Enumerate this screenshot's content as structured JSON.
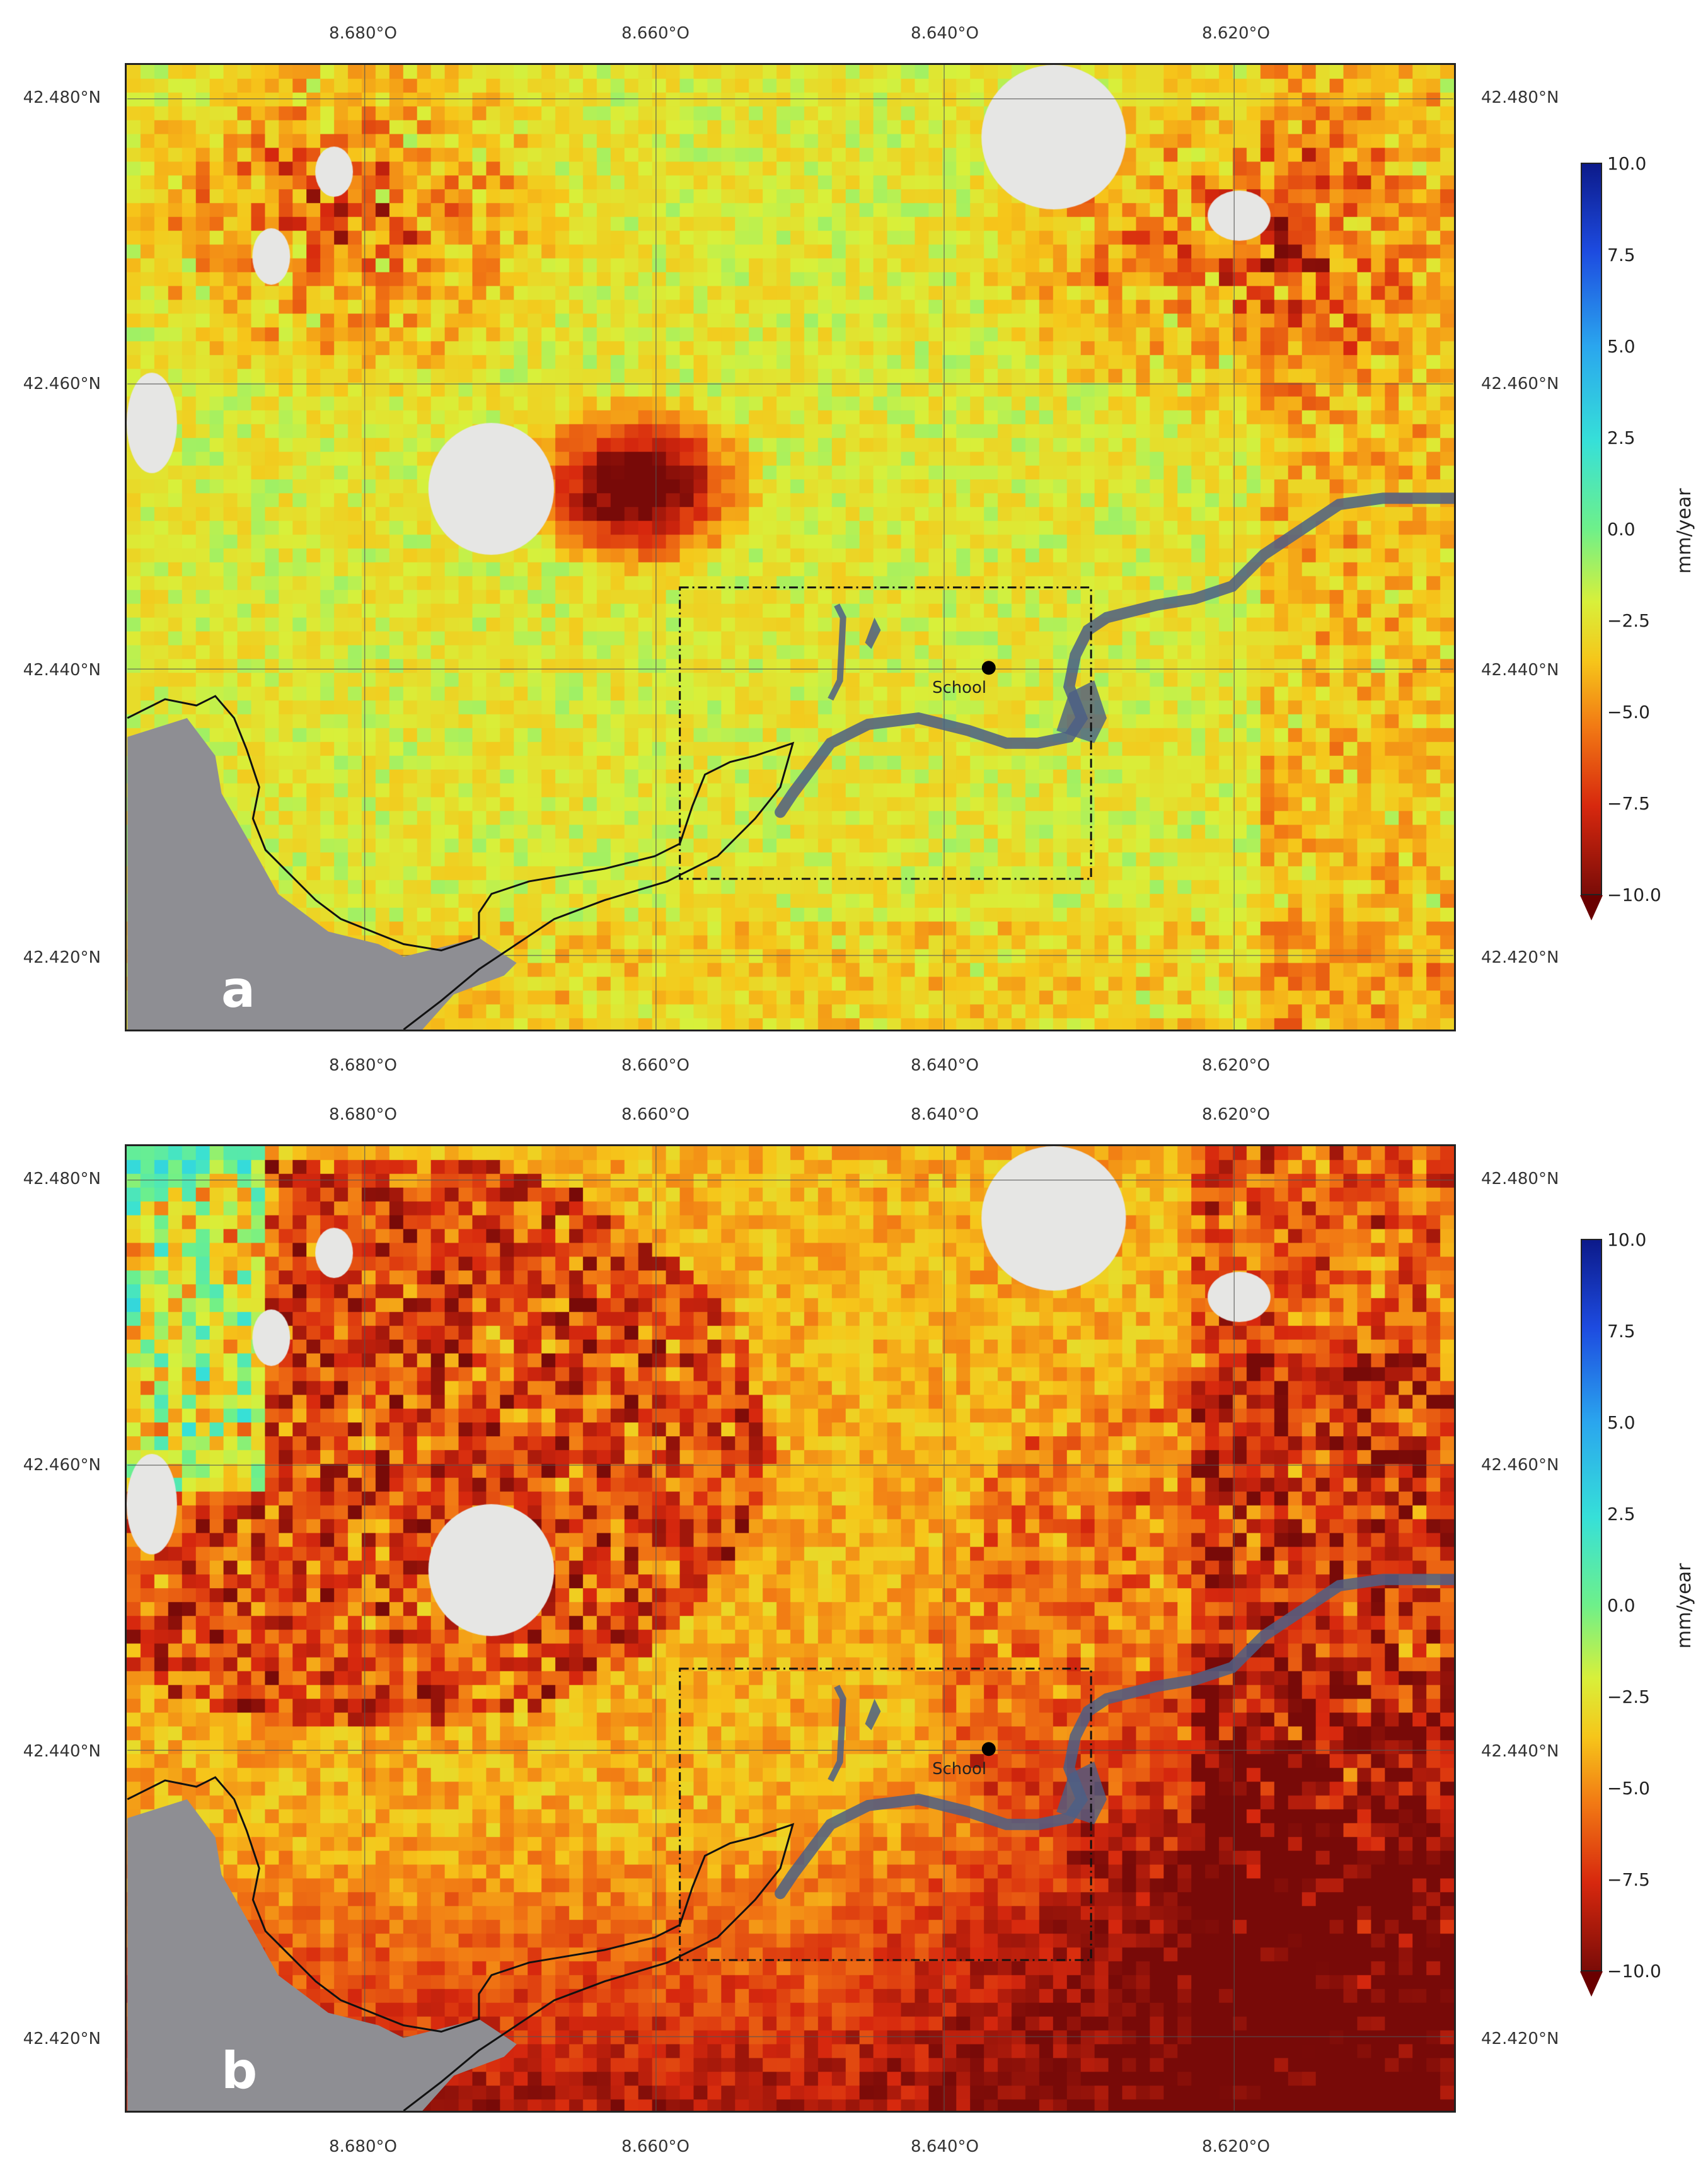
{
  "axes": {
    "lon_ticks": [
      "8.680°O",
      "8.660°O",
      "8.640°O",
      "8.620°O"
    ],
    "lat_ticks": [
      "42.480°N",
      "42.460°N",
      "42.440°N",
      "42.420°N"
    ]
  },
  "panels": [
    {
      "id": "a",
      "letter": "a",
      "school_label": "School",
      "palette": "a"
    },
    {
      "id": "b",
      "letter": "b",
      "school_label": "School",
      "palette": "b"
    }
  ],
  "colorbar": {
    "unit": "mm/year",
    "ticks": [
      "10.0",
      "7.5",
      "5.0",
      "2.5",
      "0.0",
      "−2.5",
      "−5.0",
      "−7.5",
      "−10.0"
    ],
    "range": [
      -10.0,
      10.0
    ],
    "colormap": "jet-like (blue positive, red negative)"
  },
  "colors": {
    "frame": "#222222",
    "urban_nodata": "#e6e6e4",
    "sea": "#8e8e93",
    "river": "#4c5f86",
    "school_marker": "#000000"
  }
}
